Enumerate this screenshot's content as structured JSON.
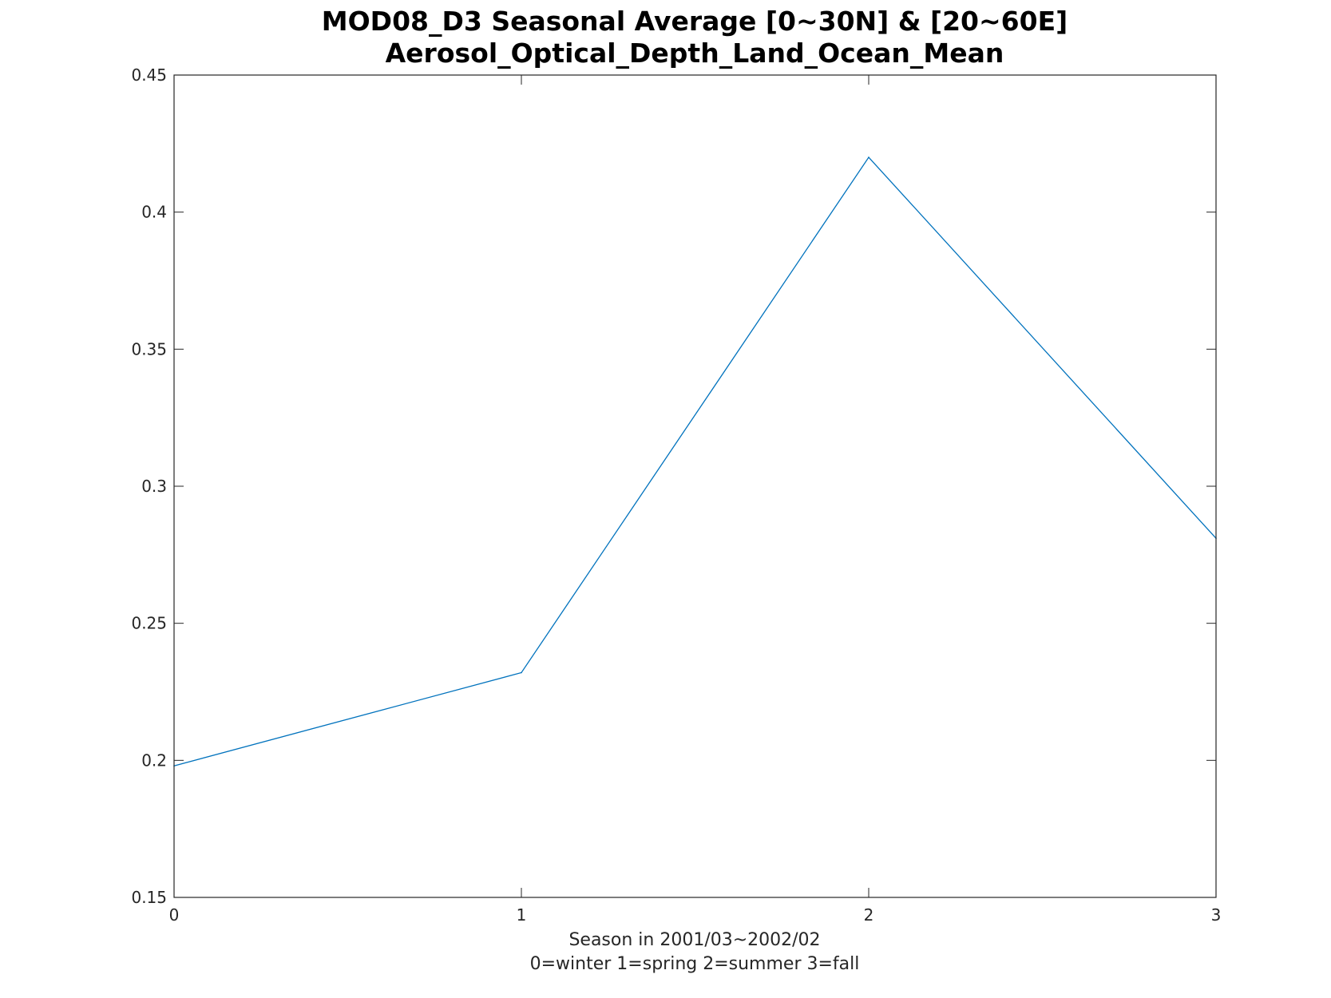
{
  "chart_data": {
    "type": "line",
    "title": "MOD08_D3 Seasonal Average [0~30N] & [20~60E]",
    "subtitle": "Aerosol_Optical_Depth_Land_Ocean_Mean",
    "xlabel": "Season in 2001/03~2002/02",
    "xlabel_line2": "0=winter 1=spring 2=summer 3=fall",
    "ylabel": "",
    "x": [
      0,
      1,
      2,
      3
    ],
    "series": [
      {
        "values": [
          0.198,
          0.232,
          0.42,
          0.281
        ],
        "color": "#0072bd"
      }
    ],
    "xlim": [
      0,
      3
    ],
    "ylim": [
      0.15,
      0.45
    ],
    "xticks": [
      0,
      1,
      2,
      3
    ],
    "xtick_labels": [
      "0",
      "1",
      "2",
      "3"
    ],
    "yticks": [
      0.15,
      0.2,
      0.25,
      0.3,
      0.35,
      0.4,
      0.45
    ],
    "ytick_labels": [
      "0.15",
      "0.2",
      "0.25",
      "0.3",
      "0.35",
      "0.4",
      "0.45"
    ],
    "grid": false,
    "legend": "none",
    "axes_color": "#262626"
  }
}
